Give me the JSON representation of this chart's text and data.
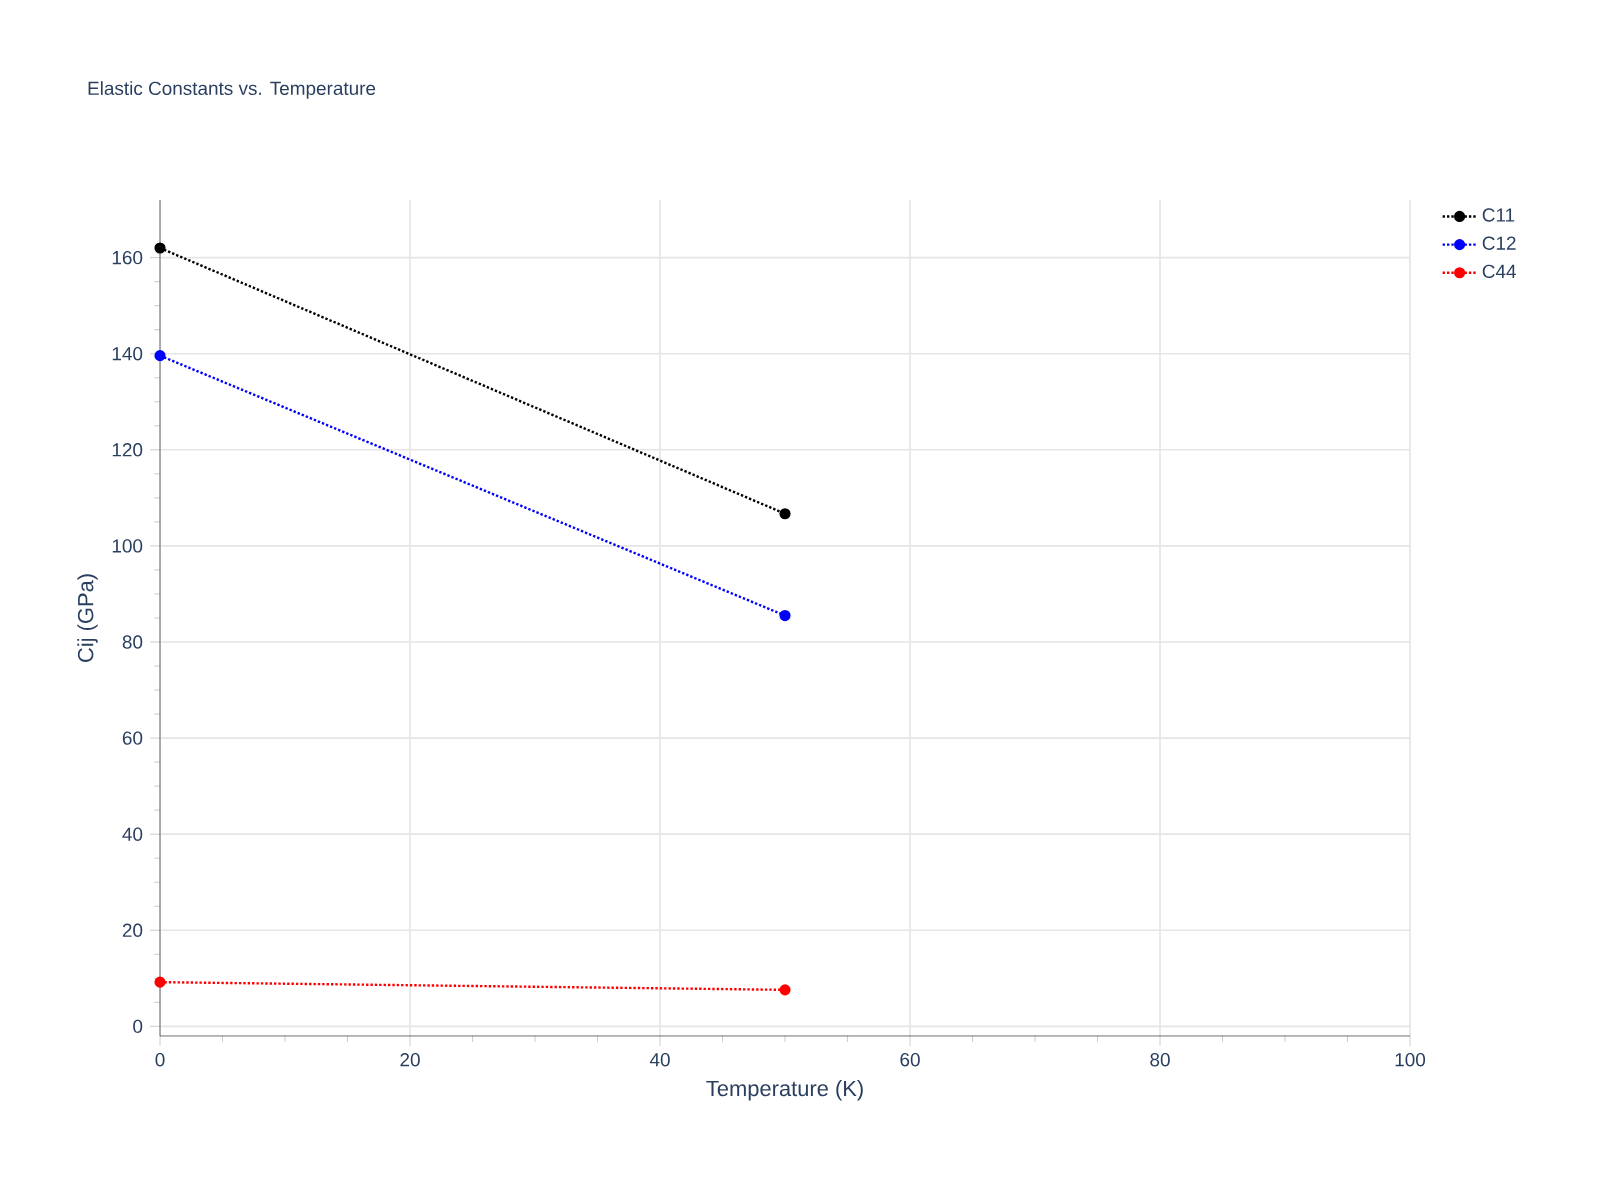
{
  "chart_data": {
    "type": "line",
    "title": "Elastic Constants vs. Temperature",
    "xlabel": "Temperature (K)",
    "ylabel": "Cij (GPa)",
    "x": [
      0,
      50
    ],
    "series": [
      {
        "name": "C11",
        "color": "#000000",
        "values": [
          162,
          106.7
        ]
      },
      {
        "name": "C12",
        "color": "#0000ff",
        "values": [
          139.6,
          85.5
        ]
      },
      {
        "name": "C44",
        "color": "#ff0000",
        "values": [
          9.2,
          7.6
        ]
      }
    ],
    "xlim": [
      0,
      100
    ],
    "ylim": [
      -2,
      172
    ],
    "xticks": [
      0,
      20,
      40,
      60,
      80,
      100
    ],
    "yticks": [
      0,
      20,
      40,
      60,
      80,
      100,
      120,
      140,
      160
    ],
    "grid": true,
    "legend": "top right",
    "marker": "circle",
    "line_style": "dotted"
  }
}
